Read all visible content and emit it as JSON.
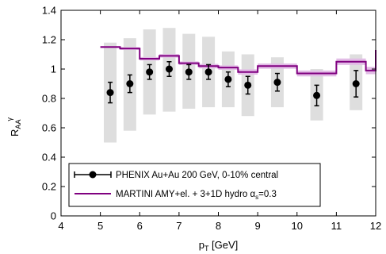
{
  "chart_data": {
    "type": "scatter",
    "xlabel": {
      "main": "p",
      "sub": "T",
      "rest": " [GeV]"
    },
    "ylabel": {
      "main": "R",
      "sub": "AA",
      "sup": "γ"
    },
    "xlim": [
      4,
      12
    ],
    "ylim": [
      0,
      1.4
    ],
    "x_ticks": [
      4,
      5,
      6,
      7,
      8,
      9,
      10,
      11,
      12
    ],
    "y_ticks": [
      0,
      0.2,
      0.4,
      0.6,
      0.8,
      1,
      1.2,
      1.4
    ],
    "grid": false,
    "legend_position": "bottom-left",
    "series": [
      {
        "name": "PHENIX Au+Au 200 GeV, 0-10% central",
        "kind": "points-with-errorbars",
        "color": "#000000",
        "points": [
          {
            "x": 5.25,
            "y": 0.84,
            "err": 0.07,
            "sys": [
              0.5,
              1.18
            ]
          },
          {
            "x": 5.75,
            "y": 0.9,
            "err": 0.06,
            "sys": [
              0.58,
              1.21
            ]
          },
          {
            "x": 6.25,
            "y": 0.98,
            "err": 0.05,
            "sys": [
              0.69,
              1.27
            ]
          },
          {
            "x": 6.75,
            "y": 1.0,
            "err": 0.05,
            "sys": [
              0.71,
              1.28
            ]
          },
          {
            "x": 7.25,
            "y": 0.98,
            "err": 0.05,
            "sys": [
              0.73,
              1.24
            ]
          },
          {
            "x": 7.75,
            "y": 0.98,
            "err": 0.05,
            "sys": [
              0.74,
              1.22
            ]
          },
          {
            "x": 8.25,
            "y": 0.93,
            "err": 0.05,
            "sys": [
              0.74,
              1.12
            ]
          },
          {
            "x": 8.75,
            "y": 0.89,
            "err": 0.06,
            "sys": [
              0.68,
              1.1
            ]
          },
          {
            "x": 9.5,
            "y": 0.91,
            "err": 0.06,
            "sys": [
              0.74,
              1.08
            ]
          },
          {
            "x": 10.5,
            "y": 0.82,
            "err": 0.07,
            "sys": [
              0.65,
              1.0
            ]
          },
          {
            "x": 11.5,
            "y": 0.9,
            "err": 0.09,
            "sys": [
              0.72,
              1.1
            ]
          }
        ]
      },
      {
        "name": "MARTINI AMY+el. + 3+1D hydro α_s=0.3",
        "kind": "step-line-with-band",
        "color": "#800080",
        "band_color": "#e2bde6",
        "steps": [
          {
            "x0": 5.0,
            "x1": 5.5,
            "y": 1.15,
            "band": 0.005
          },
          {
            "x0": 5.5,
            "x1": 6.0,
            "y": 1.14,
            "band": 0.01
          },
          {
            "x0": 6.0,
            "x1": 6.5,
            "y": 1.07,
            "band": 0.012
          },
          {
            "x0": 6.5,
            "x1": 7.0,
            "y": 1.09,
            "band": 0.012
          },
          {
            "x0": 7.0,
            "x1": 7.5,
            "y": 1.04,
            "band": 0.012
          },
          {
            "x0": 7.5,
            "x1": 8.0,
            "y": 1.02,
            "band": 0.015
          },
          {
            "x0": 8.0,
            "x1": 8.5,
            "y": 1.01,
            "band": 0.015
          },
          {
            "x0": 8.5,
            "x1": 9.0,
            "y": 0.98,
            "band": 0.018
          },
          {
            "x0": 9.0,
            "x1": 10.0,
            "y": 1.02,
            "band": 0.018
          },
          {
            "x0": 10.0,
            "x1": 11.0,
            "y": 0.97,
            "band": 0.02
          },
          {
            "x0": 11.0,
            "x1": 11.75,
            "y": 1.05,
            "band": 0.022
          },
          {
            "x0": 11.75,
            "x1": 12.0,
            "y": 0.99,
            "band": 0.025
          }
        ],
        "tail_rise_to": 1.13
      }
    ],
    "legend": [
      {
        "label": "PHENIX Au+Au 200 GeV, 0-10% central",
        "symbol": "point-line"
      },
      {
        "label_pre": "MARTINI AMY+el. + 3+1D hydro α",
        "label_sub": "s",
        "label_post": "=0.3",
        "symbol": "line"
      }
    ]
  }
}
